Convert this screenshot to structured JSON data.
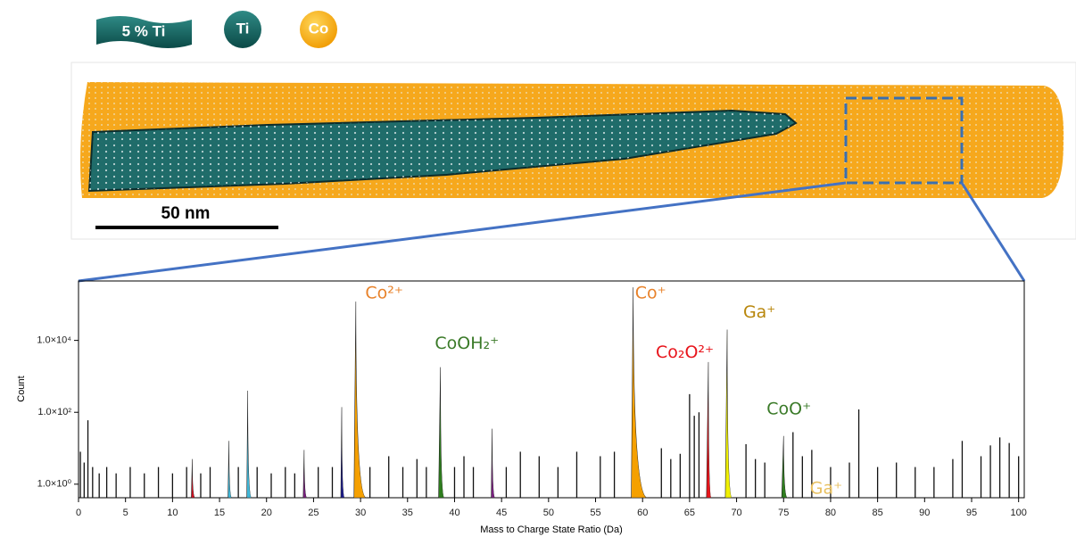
{
  "header": {
    "badges": [
      "5 % Ti",
      "Ti",
      "Co"
    ]
  },
  "image": {
    "scale_bar": "50 nm"
  },
  "chart_data": {
    "type": "spectrum",
    "xlabel": "Mass to Charge State Ratio (Da)",
    "ylabel": "Count",
    "xlim": [
      0,
      100.6
    ],
    "ylim": [
      0.42,
      450000
    ],
    "log_y": true,
    "xticks": [
      0,
      5,
      10,
      15,
      20,
      25,
      30,
      35,
      40,
      45,
      50,
      55,
      60,
      65,
      70,
      75,
      80,
      85,
      90,
      95,
      100
    ],
    "yticks": [
      {
        "value": 1,
        "label": "1.0×10⁰"
      },
      {
        "value": 100,
        "label": "1.0×10²"
      },
      {
        "value": 10000,
        "label": "1.0×10⁴"
      }
    ],
    "color": "#111111",
    "x": [
      0.2,
      0.6,
      1,
      1.5,
      2.2,
      3,
      4,
      5.5,
      7,
      8.5,
      10,
      11.5,
      13,
      14,
      17,
      19,
      20.5,
      22,
      23,
      25.5,
      27,
      31,
      33,
      34.5,
      36,
      37,
      40,
      41,
      42,
      45.5,
      47,
      49,
      51,
      53,
      55.5,
      57,
      62,
      63,
      64,
      65,
      65.5,
      66,
      71,
      72,
      73,
      76,
      77,
      78,
      80,
      82,
      83,
      85,
      87,
      89,
      91,
      93,
      94,
      96,
      97,
      98,
      99,
      100
    ],
    "values": [
      8,
      4,
      60,
      3,
      2,
      3,
      2,
      3,
      2,
      3,
      2,
      3,
      2,
      3,
      3,
      3,
      2,
      3,
      2,
      3,
      3,
      3,
      6,
      3,
      5,
      3,
      3,
      6,
      3,
      3,
      8,
      6,
      3,
      8,
      6,
      8,
      10,
      5,
      7,
      320,
      80,
      100,
      13,
      5,
      4,
      28,
      6,
      9,
      3,
      4,
      120,
      3,
      4,
      3,
      3,
      5,
      16,
      6,
      12,
      20,
      14,
      6
    ],
    "ranges": [
      {
        "color": "#cc1020",
        "range": [
          12,
          12.4
        ],
        "peak": 12.1,
        "value": 5
      },
      {
        "color": "#3fb7d8",
        "range": [
          15.9,
          16.3
        ],
        "peak": 16,
        "value": 16
      },
      {
        "color": "#3fb7d8",
        "range": [
          17.9,
          18.4
        ],
        "peak": 18,
        "value": 400
      },
      {
        "color": "#7a2080",
        "range": [
          23.9,
          24.3
        ],
        "peak": 24,
        "value": 9
      },
      {
        "color": "#1a1a8c",
        "range": [
          27.9,
          28.3
        ],
        "peak": 28,
        "value": 140
      },
      {
        "color": "#f5a000",
        "range": [
          29.3,
          30.6
        ],
        "peak": 29.5,
        "value": 120000
      },
      {
        "color": "#2e7d1e",
        "range": [
          38.3,
          38.9
        ],
        "peak": 38.5,
        "value": 1800
      },
      {
        "color": "#7a2080",
        "range": [
          43.9,
          44.3
        ],
        "peak": 44,
        "value": 35
      },
      {
        "color": "#f5a000",
        "range": [
          58.8,
          60.5
        ],
        "peak": 59,
        "value": 300000
      },
      {
        "color": "#e8141b",
        "range": [
          66.8,
          67.3
        ],
        "peak": 67,
        "value": 2500
      },
      {
        "color": "#f0f000",
        "range": [
          68.8,
          69.5
        ],
        "peak": 69,
        "value": 20000
      },
      {
        "color": "#2e7d1e",
        "range": [
          74.8,
          75.4
        ],
        "peak": 75,
        "value": 22
      }
    ],
    "annotations": [
      {
        "text": "Co²⁺",
        "x": 30.5,
        "y": 200000,
        "color": "#e8822a"
      },
      {
        "text": "CoOH₂⁺",
        "x": 37.9,
        "y": 7900,
        "color": "#3a7a28"
      },
      {
        "text": "Co⁺",
        "x": 59.2,
        "y": 200000,
        "color": "#e8822a"
      },
      {
        "text": "Co₂O²⁺",
        "x": 61.4,
        "y": 4500,
        "color": "#e8141b"
      },
      {
        "text": "Ga⁺",
        "x": 70.7,
        "y": 60000,
        "color": "#b8860b"
      },
      {
        "text": "CoO⁺",
        "x": 73.2,
        "y": 120,
        "color": "#3a7a28"
      },
      {
        "text": "Ga⁺",
        "x": 77.8,
        "y": 0.75,
        "color": "#e8c060"
      }
    ]
  }
}
